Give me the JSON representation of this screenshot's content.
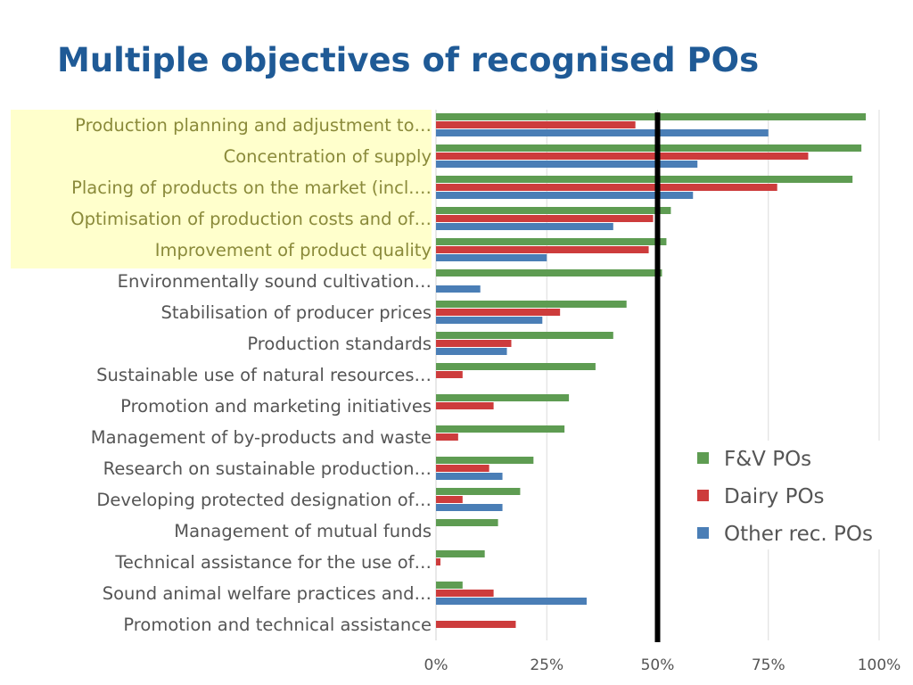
{
  "slide": {
    "title": "Multiple objectives of recognised POs"
  },
  "colors": {
    "fv": "#5e9c52",
    "dairy": "#cd3c3c",
    "other": "#4a7eb6",
    "highlight": "#ffffcc",
    "threshold_line": "#000000",
    "category_text": "#555555",
    "highlight_text": "#8a8a3a"
  },
  "chart_data": {
    "type": "bar",
    "orientation": "horizontal",
    "categories": [
      "Production planning and adjustment to…",
      "Concentration of supply",
      "Placing of products on the market (incl.…",
      "Optimisation of production costs and of…",
      "Improvement of product quality",
      "Environmentally sound cultivation…",
      "Stabilisation of producer prices",
      "Production standards",
      "Sustainable use of natural resources…",
      "Promotion and marketing initiatives",
      "Management of by-products and waste",
      "Research on sustainable production…",
      "Developing protected designation of…",
      "Management of mutual funds",
      "Technical assistance for the use of…",
      "Sound animal welfare practices and…",
      "Promotion and technical assistance"
    ],
    "highlighted_categories": [
      0,
      1,
      2,
      3,
      4
    ],
    "series": [
      {
        "name": "F&V POs",
        "color": "#5e9c52",
        "values": [
          97,
          96,
          94,
          53,
          52,
          51,
          43,
          40,
          36,
          30,
          29,
          22,
          19,
          14,
          11,
          6,
          0
        ]
      },
      {
        "name": "Dairy POs",
        "color": "#cd3c3c",
        "values": [
          45,
          84,
          77,
          49,
          48,
          0,
          28,
          17,
          6,
          13,
          5,
          12,
          6,
          0,
          1,
          13,
          18
        ]
      },
      {
        "name": "Other rec. POs",
        "color": "#4a7eb6",
        "values": [
          75,
          59,
          58,
          40,
          25,
          10,
          24,
          16,
          0,
          0,
          0,
          15,
          15,
          0,
          0,
          34,
          0
        ]
      }
    ],
    "xlim": [
      0,
      100
    ],
    "xticks": [
      "0%",
      "25%",
      "50%",
      "75%",
      "100%"
    ],
    "reference_line": 50,
    "grid": true,
    "legend_position": "right"
  }
}
